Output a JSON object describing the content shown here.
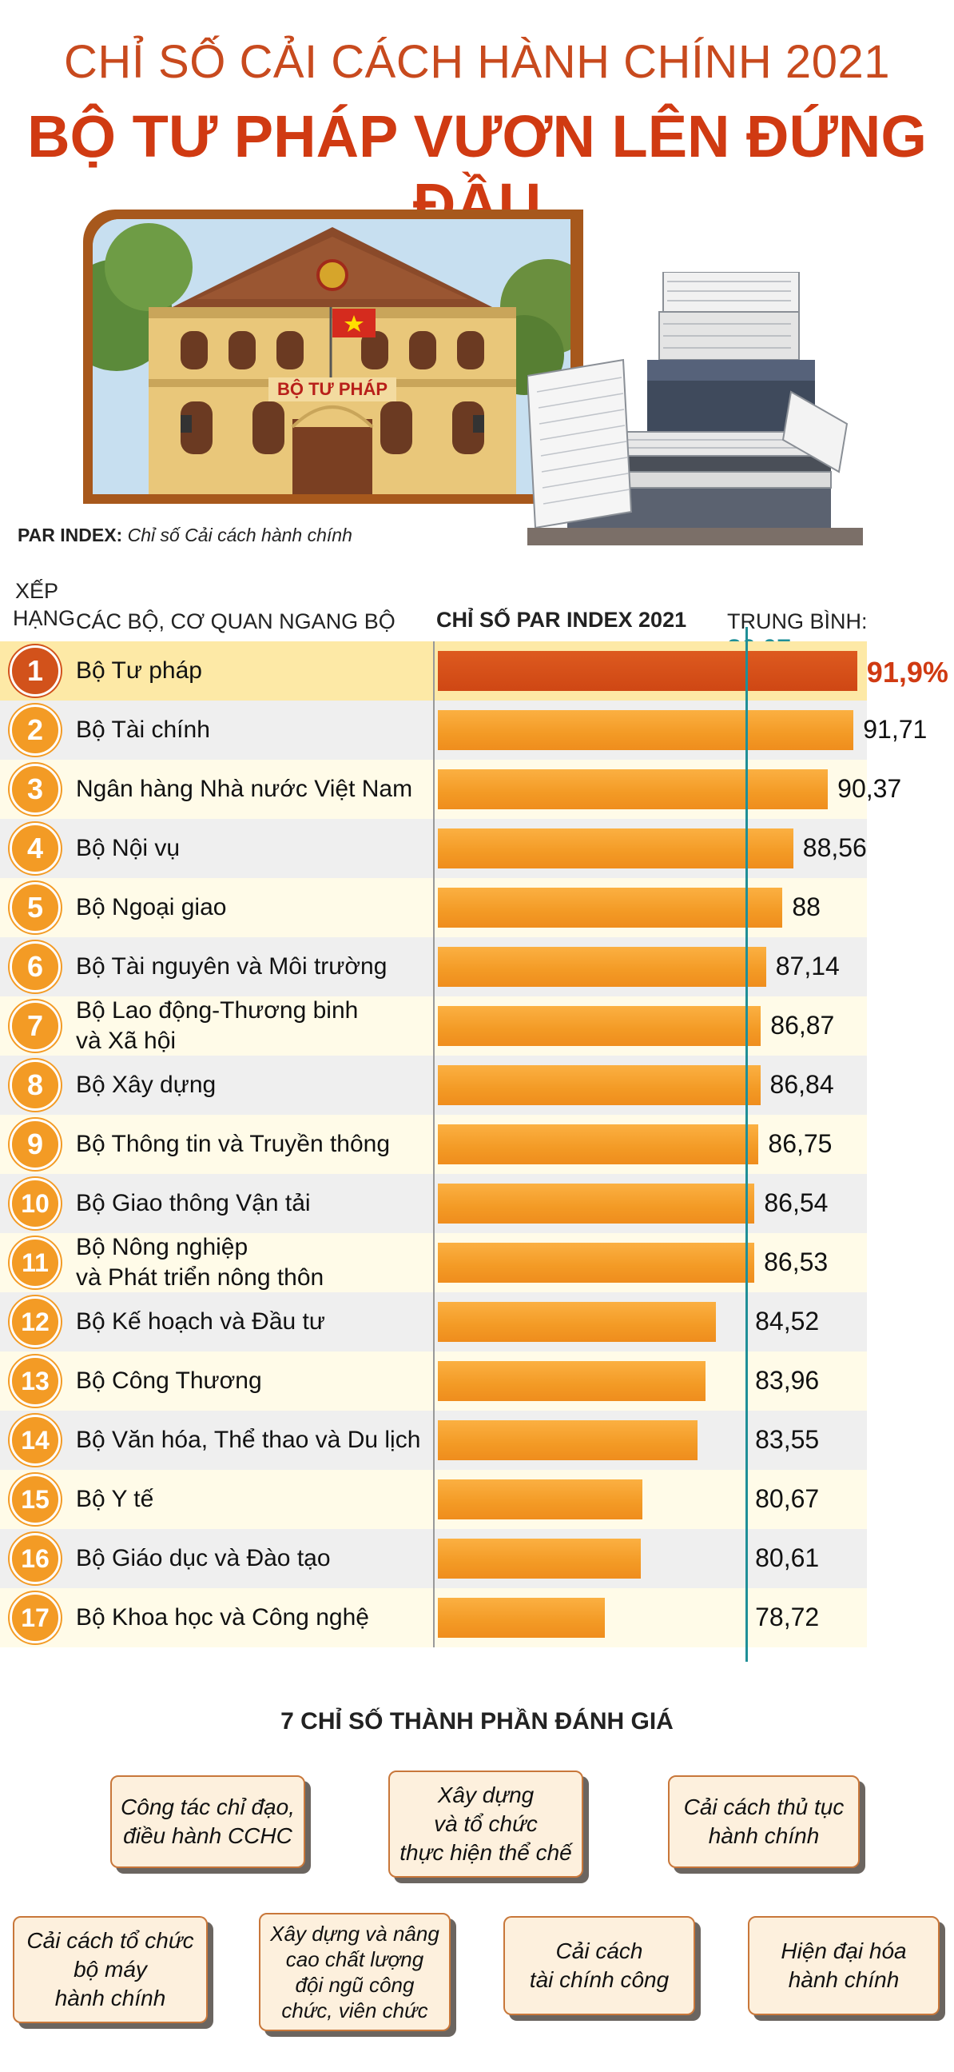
{
  "header": {
    "title_line1": "CHỈ SỐ CẢI CÁCH HÀNH CHÍNH 2021",
    "title_line2": "BỘ TƯ PHÁP VƯƠN LÊN ĐỨNG ĐẦU"
  },
  "photo": {
    "sign_text": "BỘ TƯ PHÁP"
  },
  "par_note": {
    "label": "PAR INDEX:",
    "desc": "Chỉ số Cải cách hành chính"
  },
  "table_header": {
    "rank": "XẾP\nHẠNG",
    "org": "CÁC BỘ, CƠ QUAN NGANG BỘ",
    "chart": "CHỈ SỐ PAR INDEX 2021",
    "avg_label": "TRUNG BÌNH: ",
    "avg_value": "86,07",
    "avg_unit": "%"
  },
  "colors": {
    "bar": "#f39a25",
    "first_bar": "#d2521b",
    "avg_line": "#1f8f98",
    "title": "#d03a12"
  },
  "chart_data": {
    "type": "bar",
    "title": "CHỈ SỐ PAR INDEX 2021",
    "average": 86.07,
    "categories": [
      "Bộ Tư pháp",
      "Bộ Tài chính",
      "Ngân hàng Nhà nước Việt Nam",
      "Bộ Nội vụ",
      "Bộ Ngoại giao",
      "Bộ Tài nguyên và Môi trường",
      "Bộ Lao động-Thương binh\nvà Xã hội",
      "Bộ Xây dựng",
      "Bộ Thông tin và Truyền thông",
      "Bộ Giao thông Vận tải",
      "Bộ Nông nghiệp\nvà Phát triển nông thôn",
      "Bộ Kế hoạch và Đầu tư",
      "Bộ Công Thương",
      "Bộ Văn hóa, Thể thao và Du lịch",
      "Bộ Y tế",
      "Bộ Giáo dục và Đào tạo",
      "Bộ Khoa học và Công nghệ"
    ],
    "values": [
      91.9,
      91.71,
      90.37,
      88.56,
      88,
      87.14,
      86.87,
      86.84,
      86.75,
      86.54,
      86.53,
      84.52,
      83.96,
      83.55,
      80.67,
      80.61,
      78.72
    ],
    "labels": [
      "91,9%",
      "91,71",
      "90,37",
      "88,56",
      "88",
      "87,14",
      "86,87",
      "86,84",
      "86,75",
      "86,54",
      "86,53",
      "84,52",
      "83,96",
      "83,55",
      "80,67",
      "80,61",
      "78,72"
    ],
    "ranks": [
      "1",
      "2",
      "3",
      "4",
      "5",
      "6",
      "7",
      "8",
      "9",
      "10",
      "11",
      "12",
      "13",
      "14",
      "15",
      "16",
      "17"
    ]
  },
  "components": {
    "title": "7 CHỈ SỐ THÀNH PHẦN ĐÁNH GIÁ",
    "items": [
      "Công tác chỉ đạo,\nđiều hành CCHC",
      "Xây dựng\nvà tổ chức\nthực hiện thể chế",
      "Cải cách thủ tục\nhành chính",
      "Cải cách tổ chức\nbộ máy\nhành chính",
      "Xây dựng và nâng\ncao chất lượng\nđội ngũ công\nchức, viên chức",
      "Cải cách\ntài chính công",
      "Hiện đại hóa\nhành chính"
    ]
  }
}
